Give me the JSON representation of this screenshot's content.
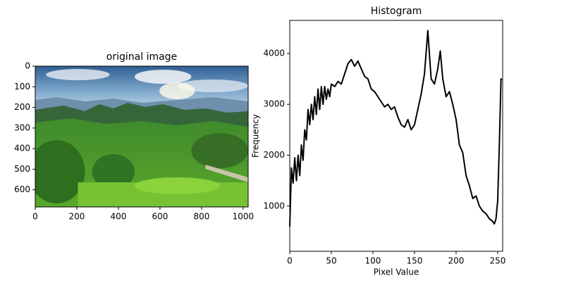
{
  "chart_data": [
    {
      "type": "image",
      "title": "original image",
      "xlim": [
        0,
        1024
      ],
      "ylim": [
        683,
        0
      ],
      "xticks": [
        0,
        200,
        400,
        600,
        800,
        1000
      ],
      "yticks": [
        0,
        100,
        200,
        300,
        400,
        500,
        600
      ]
    },
    {
      "type": "line",
      "title": "Histogram",
      "xlabel": "Pixel Value",
      "ylabel": "Frequency",
      "x": [
        0,
        2,
        4,
        6,
        8,
        10,
        12,
        14,
        16,
        18,
        20,
        22,
        24,
        26,
        28,
        30,
        32,
        34,
        36,
        38,
        40,
        42,
        44,
        46,
        48,
        50,
        54,
        58,
        62,
        66,
        70,
        74,
        78,
        82,
        86,
        90,
        94,
        98,
        102,
        106,
        110,
        114,
        118,
        122,
        126,
        130,
        134,
        138,
        142,
        146,
        150,
        154,
        158,
        162,
        166,
        170,
        174,
        178,
        181,
        184,
        188,
        192,
        196,
        200,
        204,
        208,
        212,
        216,
        220,
        224,
        228,
        232,
        236,
        240,
        244,
        246,
        248,
        250,
        252,
        254,
        255
      ],
      "values": [
        600,
        1750,
        1450,
        1950,
        1500,
        2000,
        1600,
        2200,
        1900,
        2500,
        2300,
        2900,
        2600,
        3000,
        2700,
        3150,
        2800,
        3300,
        2900,
        3350,
        3000,
        3350,
        3100,
        3300,
        3150,
        3400,
        3350,
        3450,
        3400,
        3600,
        3800,
        3880,
        3750,
        3850,
        3700,
        3550,
        3500,
        3300,
        3250,
        3150,
        3050,
        2950,
        3000,
        2900,
        2950,
        2750,
        2600,
        2550,
        2700,
        2500,
        2600,
        2900,
        3200,
        3600,
        4450,
        3500,
        3400,
        3700,
        4050,
        3500,
        3150,
        3250,
        3000,
        2700,
        2200,
        2050,
        1600,
        1400,
        1150,
        1200,
        1000,
        900,
        850,
        750,
        700,
        650,
        750,
        1100,
        2200,
        3500,
        3480
      ],
      "color": "#000000",
      "xlim": [
        0,
        256
      ],
      "ylim": [
        111,
        4650
      ],
      "xticks": [
        0,
        50,
        100,
        150,
        200,
        250
      ],
      "yticks": [
        1000,
        2000,
        3000,
        4000
      ]
    }
  ]
}
